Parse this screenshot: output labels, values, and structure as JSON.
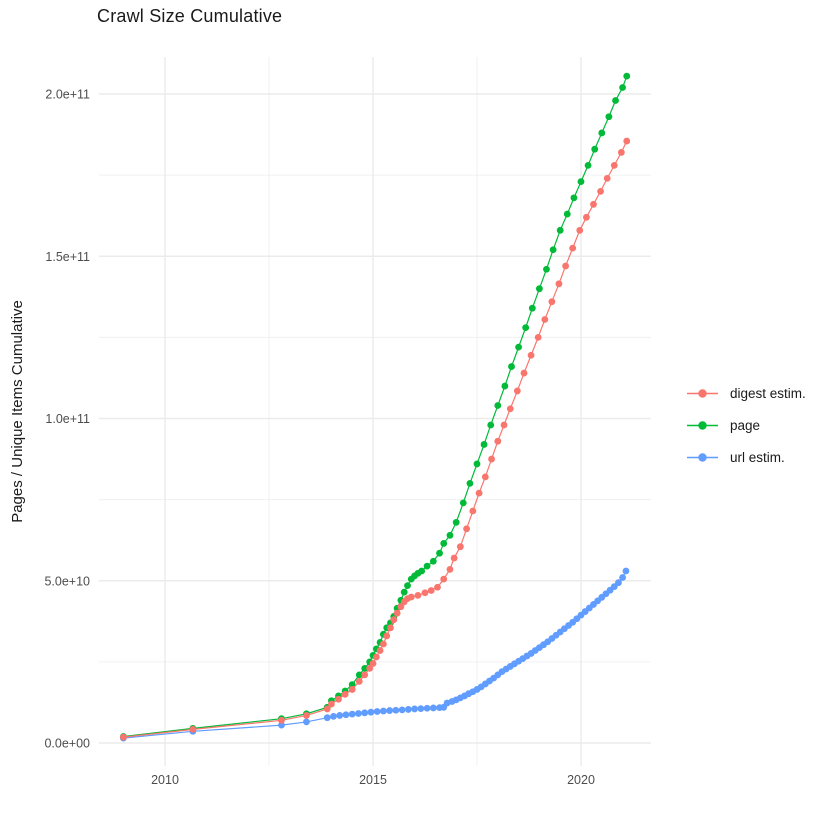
{
  "title": "Crawl Size Cumulative",
  "y_axis": {
    "label": "Pages / Unique Items Cumulative",
    "tick_labels": [
      "0.0e+00",
      "5.0e+10",
      "1.0e+11",
      "1.5e+11",
      "2.0e+11"
    ],
    "tick_values_billions": [
      0,
      50,
      100,
      150,
      200
    ],
    "minor_values_billions": [
      25,
      75,
      125,
      175
    ]
  },
  "x_axis": {
    "tick_labels": [
      "2010",
      "2015",
      "2020"
    ],
    "tick_values": [
      2010,
      2015,
      2020
    ],
    "minor_values": [
      2012.5,
      2017.5
    ]
  },
  "legend": {
    "items": [
      {
        "label": "digest estim.",
        "color": "#F8766D",
        "series": "digest"
      },
      {
        "label": "page",
        "color": "#00BA38",
        "series": "page"
      },
      {
        "label": "url estim.",
        "color": "#619CFF",
        "series": "url"
      }
    ]
  },
  "colors": {
    "grid_major": "#EBEBEB",
    "grid_minor": "#F0F0F0",
    "axis_text": "#4D4D4D",
    "title_text": "#1A1A1A"
  },
  "chart_data": {
    "type": "scatter",
    "note": "points are [year, cumulative count in billions (1e9)]",
    "xlim": [
      2008.4,
      2021.7
    ],
    "ylim_billions": [
      0,
      205.5
    ],
    "grid": true,
    "legend_position": "right",
    "series": [
      {
        "name": "page",
        "color": "#00BA38",
        "points": [
          [
            2009,
            2
          ],
          [
            2010.67,
            4.5
          ],
          [
            2012.8,
            7.5
          ],
          [
            2013.4,
            9
          ],
          [
            2013.9,
            11
          ],
          [
            2014,
            13
          ],
          [
            2014.17,
            14.5
          ],
          [
            2014.33,
            16
          ],
          [
            2014.5,
            18
          ],
          [
            2014.67,
            21
          ],
          [
            2014.8,
            23
          ],
          [
            2014.92,
            25
          ],
          [
            2015,
            27
          ],
          [
            2015.08,
            29
          ],
          [
            2015.17,
            31
          ],
          [
            2015.25,
            33.5
          ],
          [
            2015.33,
            35.5
          ],
          [
            2015.42,
            37
          ],
          [
            2015.5,
            39
          ],
          [
            2015.58,
            41.5
          ],
          [
            2015.67,
            44
          ],
          [
            2015.75,
            46.5
          ],
          [
            2015.83,
            48.5
          ],
          [
            2015.92,
            50.5
          ],
          [
            2016,
            51.5
          ],
          [
            2016.08,
            52.3
          ],
          [
            2016.17,
            53
          ],
          [
            2016.3,
            54.5
          ],
          [
            2016.45,
            56
          ],
          [
            2016.6,
            58.5
          ],
          [
            2016.7,
            61.5
          ],
          [
            2016.85,
            64
          ],
          [
            2017,
            68
          ],
          [
            2017.17,
            74
          ],
          [
            2017.33,
            80
          ],
          [
            2017.5,
            86
          ],
          [
            2017.67,
            92
          ],
          [
            2017.83,
            98
          ],
          [
            2018,
            104
          ],
          [
            2018.17,
            110
          ],
          [
            2018.33,
            116
          ],
          [
            2018.5,
            122
          ],
          [
            2018.67,
            128
          ],
          [
            2018.83,
            134
          ],
          [
            2019,
            140
          ],
          [
            2019.17,
            146
          ],
          [
            2019.33,
            152
          ],
          [
            2019.5,
            158
          ],
          [
            2019.67,
            163
          ],
          [
            2019.83,
            168
          ],
          [
            2020,
            173
          ],
          [
            2020.17,
            178
          ],
          [
            2020.33,
            183
          ],
          [
            2020.5,
            188
          ],
          [
            2020.67,
            193
          ],
          [
            2020.83,
            198
          ],
          [
            2021,
            202
          ],
          [
            2021.1,
            205.5
          ]
        ]
      },
      {
        "name": "url",
        "color": "#619CFF",
        "points": [
          [
            2009,
            1.5
          ],
          [
            2010.67,
            3.6
          ],
          [
            2012.8,
            5.5
          ],
          [
            2013.4,
            6.5
          ],
          [
            2013.9,
            7.8
          ],
          [
            2014.05,
            8.2
          ],
          [
            2014.2,
            8.5
          ],
          [
            2014.35,
            8.7
          ],
          [
            2014.5,
            8.9
          ],
          [
            2014.65,
            9.1
          ],
          [
            2014.8,
            9.3
          ],
          [
            2014.95,
            9.5
          ],
          [
            2015.1,
            9.7
          ],
          [
            2015.25,
            9.85
          ],
          [
            2015.4,
            10
          ],
          [
            2015.55,
            10.1
          ],
          [
            2015.7,
            10.2
          ],
          [
            2015.85,
            10.35
          ],
          [
            2016,
            10.5
          ],
          [
            2016.15,
            10.6
          ],
          [
            2016.3,
            10.7
          ],
          [
            2016.45,
            10.8
          ],
          [
            2016.6,
            10.9
          ],
          [
            2016.7,
            11
          ],
          [
            2016.78,
            12.3
          ],
          [
            2016.9,
            12.8
          ],
          [
            2017,
            13.3
          ],
          [
            2017.1,
            13.9
          ],
          [
            2017.2,
            14.5
          ],
          [
            2017.3,
            15.2
          ],
          [
            2017.4,
            15.8
          ],
          [
            2017.5,
            16.5
          ],
          [
            2017.6,
            17.3
          ],
          [
            2017.7,
            18.2
          ],
          [
            2017.8,
            19.1
          ],
          [
            2017.9,
            20
          ],
          [
            2018,
            21
          ],
          [
            2018.1,
            22
          ],
          [
            2018.2,
            22.8
          ],
          [
            2018.3,
            23.6
          ],
          [
            2018.4,
            24.4
          ],
          [
            2018.5,
            25.2
          ],
          [
            2018.6,
            26
          ],
          [
            2018.7,
            26.8
          ],
          [
            2018.8,
            27.6
          ],
          [
            2018.9,
            28.5
          ],
          [
            2019,
            29.4
          ],
          [
            2019.1,
            30.3
          ],
          [
            2019.2,
            31.2
          ],
          [
            2019.3,
            32.2
          ],
          [
            2019.4,
            33.2
          ],
          [
            2019.5,
            34.2
          ],
          [
            2019.6,
            35.2
          ],
          [
            2019.7,
            36.2
          ],
          [
            2019.8,
            37.2
          ],
          [
            2019.9,
            38.3
          ],
          [
            2020,
            39.4
          ],
          [
            2020.1,
            40.5
          ],
          [
            2020.2,
            41.6
          ],
          [
            2020.3,
            42.7
          ],
          [
            2020.4,
            43.8
          ],
          [
            2020.5,
            44.9
          ],
          [
            2020.6,
            46
          ],
          [
            2020.7,
            47.1
          ],
          [
            2020.8,
            48.2
          ],
          [
            2020.9,
            49.4
          ],
          [
            2021,
            51
          ],
          [
            2021.08,
            53
          ]
        ]
      },
      {
        "name": "digest",
        "color": "#F8766D",
        "points": [
          [
            2009,
            1.8
          ],
          [
            2010.67,
            4.2
          ],
          [
            2012.8,
            7
          ],
          [
            2013.4,
            8.5
          ],
          [
            2013.9,
            10.5
          ],
          [
            2014,
            12
          ],
          [
            2014.17,
            13.5
          ],
          [
            2014.33,
            15
          ],
          [
            2014.5,
            16.5
          ],
          [
            2014.67,
            19
          ],
          [
            2014.8,
            21
          ],
          [
            2014.92,
            23
          ],
          [
            2015,
            24.5
          ],
          [
            2015.08,
            26.5
          ],
          [
            2015.17,
            28.5
          ],
          [
            2015.25,
            30.5
          ],
          [
            2015.33,
            33
          ],
          [
            2015.42,
            35.5
          ],
          [
            2015.5,
            38
          ],
          [
            2015.58,
            40
          ],
          [
            2015.67,
            42
          ],
          [
            2015.75,
            43.5
          ],
          [
            2015.83,
            44.5
          ],
          [
            2015.92,
            45
          ],
          [
            2016.08,
            45.5
          ],
          [
            2016.25,
            46.3
          ],
          [
            2016.4,
            47
          ],
          [
            2016.55,
            48
          ],
          [
            2016.7,
            50.5
          ],
          [
            2016.85,
            53.5
          ],
          [
            2016.95,
            57
          ],
          [
            2017.1,
            60.5
          ],
          [
            2017.25,
            66
          ],
          [
            2017.4,
            71.5
          ],
          [
            2017.55,
            77
          ],
          [
            2017.7,
            82
          ],
          [
            2017.85,
            87.5
          ],
          [
            2018,
            93
          ],
          [
            2018.15,
            98
          ],
          [
            2018.3,
            103
          ],
          [
            2018.47,
            108.5
          ],
          [
            2018.63,
            114
          ],
          [
            2018.8,
            119.5
          ],
          [
            2018.97,
            125
          ],
          [
            2019.13,
            130.5
          ],
          [
            2019.3,
            136
          ],
          [
            2019.47,
            141.5
          ],
          [
            2019.63,
            147
          ],
          [
            2019.8,
            152.5
          ],
          [
            2019.97,
            158
          ],
          [
            2020.13,
            162
          ],
          [
            2020.3,
            166
          ],
          [
            2020.47,
            170
          ],
          [
            2020.63,
            174
          ],
          [
            2020.8,
            178
          ],
          [
            2020.97,
            182
          ],
          [
            2021.1,
            185.5
          ]
        ]
      }
    ]
  }
}
